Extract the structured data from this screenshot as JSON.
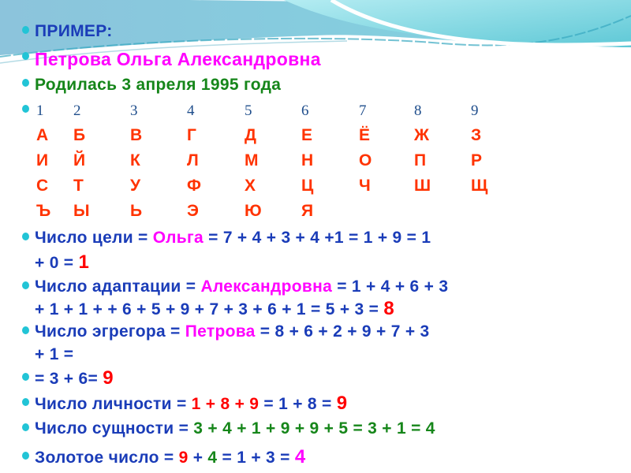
{
  "colors": {
    "blue": "#1a3cb8",
    "magenta": "#ff00ff",
    "red": "#ff0000",
    "green": "#16861a",
    "letters": "#ff3300",
    "numbers": "#1f4e8c",
    "bullet": "#22c4d6"
  },
  "title": "ПРИМЕР:",
  "name": "Петрова Ольга Александровна",
  "birth": "Родилась 3 апреля 1995 года",
  "table": {
    "numbers": [
      "1",
      "2",
      "3",
      "4",
      "5",
      "6",
      "7",
      "8",
      "9"
    ],
    "rows": [
      [
        "А",
        "Б",
        "В",
        "Г",
        "Д",
        "Е",
        "Ё",
        "Ж",
        "З"
      ],
      [
        "И",
        "Й",
        "К",
        "Л",
        "М",
        "Н",
        "О",
        "П",
        "Р"
      ],
      [
        "С",
        "Т",
        "У",
        "Ф",
        "Х",
        "Ц",
        "Ч",
        "Ш",
        "Щ"
      ],
      [
        "Ъ",
        "Ы",
        "Ь",
        "Э",
        "Ю",
        "Я",
        "",
        "",
        ""
      ]
    ]
  },
  "calculations": [
    {
      "bullet": true,
      "segments": [
        [
          "Число цели = ",
          "blue"
        ],
        [
          "Ольга",
          "magenta"
        ],
        [
          " = 7 + 4 + 3 + 4 +1 = 1 + 9 = 1",
          "blue"
        ]
      ]
    },
    {
      "bullet": false,
      "segments": [
        [
          "+ 0 = ",
          "blue"
        ],
        [
          "1",
          "red"
        ]
      ]
    },
    {
      "bullet": true,
      "segments": [
        [
          "Число адаптации = ",
          "blue"
        ],
        [
          "Александровна",
          "magenta"
        ],
        [
          " = 1 + 4 + 6 + 3",
          "blue"
        ]
      ]
    },
    {
      "bullet": false,
      "segments": [
        [
          "+ 1 + 1 + + 6 + 5 + 9 + 7 + 3 + 6 + 1 = 5 + 3 = ",
          "blue"
        ],
        [
          "8",
          "red"
        ]
      ]
    },
    {
      "bullet": true,
      "segments": [
        [
          "Число эгрегора = ",
          "blue"
        ],
        [
          "Петрова",
          "magenta"
        ],
        [
          " = 8 + 6 + 2 + 9 + 7 + 3",
          "blue"
        ]
      ]
    },
    {
      "bullet": false,
      "segments": [
        [
          "+ 1 =",
          "blue"
        ]
      ]
    },
    {
      "bullet": true,
      "segments": [
        [
          "= 3 + 6= ",
          "blue"
        ],
        [
          "9",
          "red"
        ]
      ]
    },
    {
      "bullet": true,
      "segments": [
        [
          "Число личности = ",
          "blue"
        ],
        [
          "1 + 8 + 9",
          "red"
        ],
        [
          " = 1 + 8 = ",
          "blue"
        ],
        [
          "9",
          "red"
        ]
      ]
    },
    {
      "bullet": true,
      "segments": [
        [
          "Число сущности = ",
          "blue"
        ],
        [
          "3 + 4 + 1 + 9 + 9 + 5 = 3 + 1 = 4",
          "green"
        ]
      ]
    },
    {
      "bullet": true,
      "segments": [
        [
          "Золотое число = ",
          "blue"
        ],
        [
          "9",
          "red"
        ],
        [
          " + ",
          "blue"
        ],
        [
          "4",
          "green"
        ],
        [
          " = 1 + 3 = ",
          "blue"
        ],
        [
          "4",
          "magenta"
        ]
      ]
    }
  ]
}
